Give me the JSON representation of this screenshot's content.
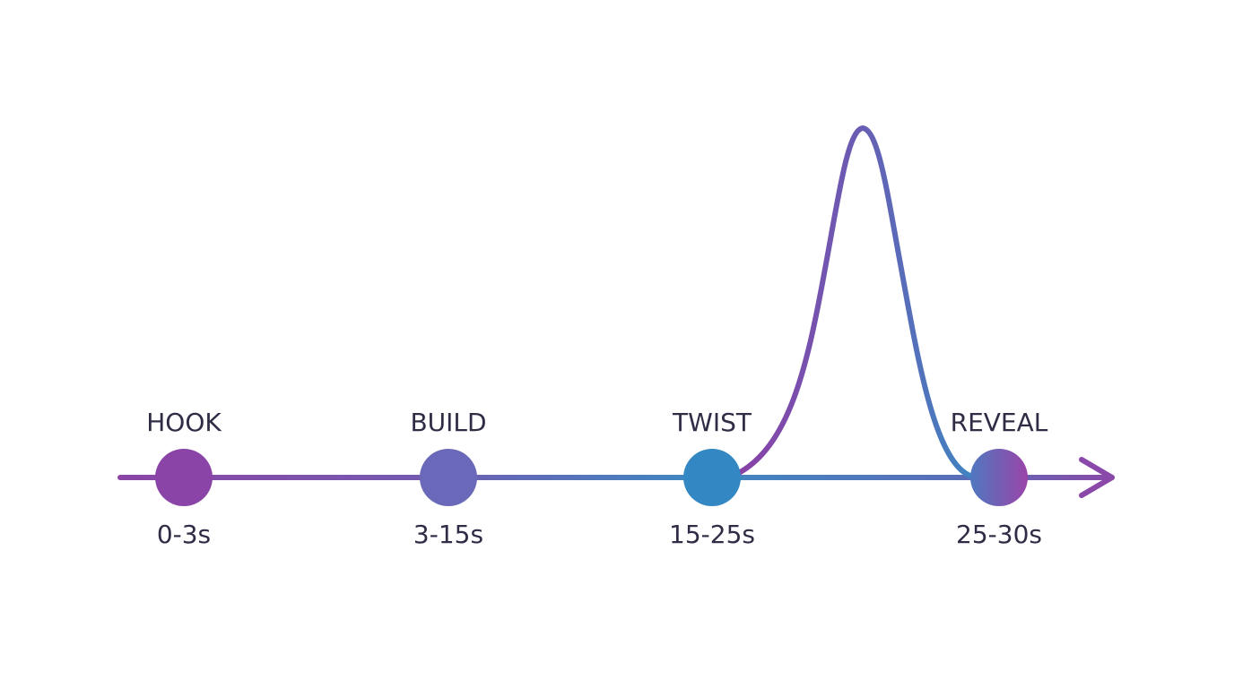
{
  "stages": [
    {
      "name": "HOOK",
      "time": "0-3s",
      "color": "#8a44a8"
    },
    {
      "name": "BUILD",
      "time": "3-15s",
      "color": "#6a68b8"
    },
    {
      "name": "TWIST",
      "time": "15-25s",
      "color": "#3388c4"
    },
    {
      "name": "REVEAL",
      "time": "25-30s",
      "color": "#6a5cb4"
    }
  ],
  "colors": {
    "purple": "#8b45a6",
    "violet": "#6b63b3",
    "blue": "#3a88c2",
    "text": "#2f2d45"
  }
}
